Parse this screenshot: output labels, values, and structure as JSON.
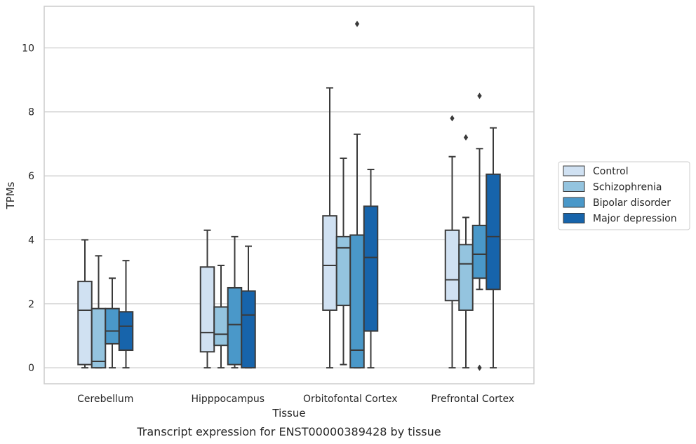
{
  "chart_data": {
    "type": "box",
    "xlabel": "Tissue",
    "ylabel": "TPMs",
    "caption": "Transcript expression for ENST00000389428 by tissue",
    "ylim": [
      -0.5,
      11.3
    ],
    "yticks": [
      "0",
      "2",
      "4",
      "6",
      "8",
      "10"
    ],
    "grid": true,
    "legend_position": "right",
    "categories": [
      "Cerebellum",
      "Hipppocampus",
      "Orbitofontal Cortex",
      "Prefrontal Cortex"
    ],
    "series": [
      {
        "name": "Control",
        "color": "#d0e1f2",
        "boxes": [
          {
            "min": 0.0,
            "q1": 0.1,
            "median": 1.8,
            "q3": 2.7,
            "max": 4.0,
            "outliers": []
          },
          {
            "min": 0.0,
            "q1": 0.5,
            "median": 1.1,
            "q3": 3.15,
            "max": 4.3,
            "outliers": []
          },
          {
            "min": 0.0,
            "q1": 1.8,
            "median": 3.2,
            "q3": 4.75,
            "max": 8.75,
            "outliers": []
          },
          {
            "min": 0.0,
            "q1": 2.1,
            "median": 2.75,
            "q3": 4.3,
            "max": 6.6,
            "outliers": [
              7.8
            ]
          }
        ]
      },
      {
        "name": "Schizophrenia",
        "color": "#94c4df",
        "boxes": [
          {
            "min": 0.0,
            "q1": 0.0,
            "median": 0.2,
            "q3": 1.85,
            "max": 3.5,
            "outliers": []
          },
          {
            "min": 0.0,
            "q1": 0.7,
            "median": 1.05,
            "q3": 1.9,
            "max": 3.2,
            "outliers": []
          },
          {
            "min": 0.1,
            "q1": 1.95,
            "median": 3.75,
            "q3": 4.1,
            "max": 6.55,
            "outliers": []
          },
          {
            "min": 0.0,
            "q1": 1.8,
            "median": 3.25,
            "q3": 3.85,
            "max": 4.7,
            "outliers": [
              7.2
            ]
          }
        ]
      },
      {
        "name": "Bipolar disorder",
        "color": "#4a98c9",
        "boxes": [
          {
            "min": 0.0,
            "q1": 0.75,
            "median": 1.15,
            "q3": 1.85,
            "max": 2.8,
            "outliers": []
          },
          {
            "min": 0.0,
            "q1": 0.1,
            "median": 1.35,
            "q3": 2.5,
            "max": 4.1,
            "outliers": []
          },
          {
            "min": 0.0,
            "q1": 0.0,
            "median": 0.55,
            "q3": 4.15,
            "max": 7.3,
            "outliers": [
              10.75
            ]
          },
          {
            "min": 2.45,
            "q1": 2.8,
            "median": 3.55,
            "q3": 4.45,
            "max": 6.85,
            "outliers": [
              0.0,
              8.5
            ]
          }
        ]
      },
      {
        "name": "Major depression",
        "color": "#1764ab",
        "boxes": [
          {
            "min": 0.0,
            "q1": 0.55,
            "median": 1.3,
            "q3": 1.75,
            "max": 3.35,
            "outliers": []
          },
          {
            "min": 0.0,
            "q1": 0.0,
            "median": 1.65,
            "q3": 2.4,
            "max": 3.8,
            "outliers": []
          },
          {
            "min": 0.0,
            "q1": 1.15,
            "median": 3.45,
            "q3": 5.05,
            "max": 6.2,
            "outliers": []
          },
          {
            "min": 0.0,
            "q1": 2.45,
            "median": 4.1,
            "q3": 6.05,
            "max": 7.5,
            "outliers": []
          }
        ]
      }
    ]
  },
  "colors": {
    "grid": "#cccccc",
    "frame": "#cccccc",
    "line": "#3a3a3a",
    "text": "#262626"
  }
}
